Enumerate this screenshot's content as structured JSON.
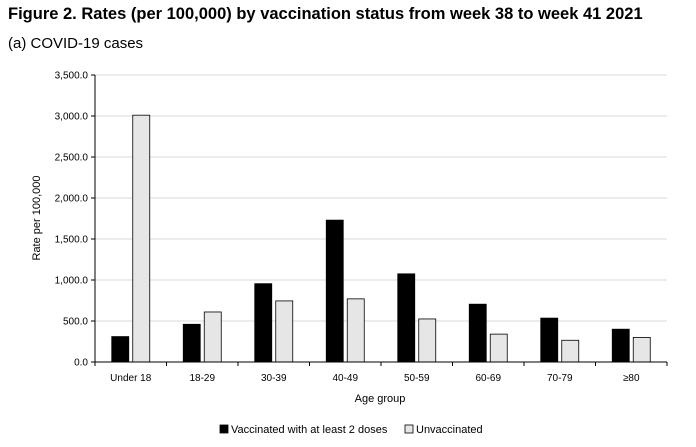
{
  "figure": {
    "title": "Figure 2. Rates (per 100,000) by vaccination status from week 38 to week 41 2021",
    "subtitle": "(a) COVID-19 cases"
  },
  "chart_data": {
    "type": "bar",
    "categories": [
      "Under 18",
      "18-29",
      "30-39",
      "40-49",
      "50-59",
      "60-69",
      "70-79",
      "≥80"
    ],
    "series": [
      {
        "name": "Vaccinated with at least 2 doses",
        "color": "#000000",
        "values": [
          310,
          460,
          955,
          1730,
          1075,
          705,
          535,
          400
        ]
      },
      {
        "name": "Unvaccinated",
        "color": "#e6e6e6",
        "values": [
          3010,
          610,
          745,
          770,
          525,
          340,
          265,
          300
        ]
      }
    ],
    "xlabel": "Age group",
    "ylabel": "Rate per 100,000",
    "ylim": [
      0,
      3500
    ],
    "yticks": [
      "0.0",
      "500.0",
      "1,000.0",
      "1,500.0",
      "2,000.0",
      "2,500.0",
      "3,000.0",
      "3,500.0"
    ],
    "grid": true,
    "legend_position": "bottom"
  }
}
